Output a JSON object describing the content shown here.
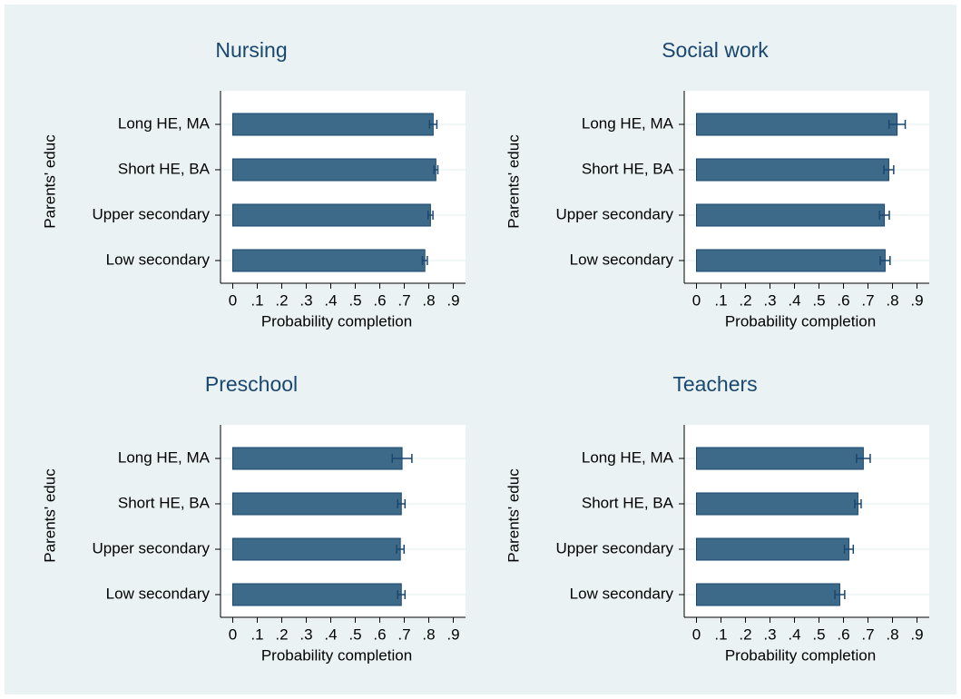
{
  "chart_data": [
    {
      "type": "hbar",
      "title": "Nursing",
      "ylabel": "Parents' educ",
      "xlabel": "Probability completion",
      "categories": [
        "Long HE, MA",
        "Short HE, BA",
        "Upper secondary",
        "Low secondary"
      ],
      "values": [
        0.818,
        0.829,
        0.807,
        0.784
      ],
      "errors": [
        0.015,
        0.008,
        0.01,
        0.01
      ],
      "color": "#3e6a8a",
      "xlim": [
        -0.05,
        0.95
      ],
      "xticks": [
        0,
        {
          "value": 0.1,
          "label": ".1"
        },
        {
          "value": 0.2,
          "label": ".2"
        },
        {
          "value": 0.3,
          "label": ".3"
        },
        {
          "value": 0.4,
          "label": ".4"
        },
        {
          "value": 0.5,
          "label": ".5"
        },
        {
          "value": 0.6,
          "label": ".6"
        },
        {
          "value": 0.7,
          "label": ".7"
        },
        {
          "value": 0.8,
          "label": ".8"
        },
        {
          "value": 0.9,
          "label": ".9"
        }
      ]
    },
    {
      "type": "hbar",
      "title": "Social work",
      "ylabel": "Parents' educ",
      "xlabel": "Probability completion",
      "categories": [
        "Long HE, MA",
        "Short HE, BA",
        "Upper secondary",
        "Low secondary"
      ],
      "values": [
        0.819,
        0.785,
        0.767,
        0.77
      ],
      "errors": [
        0.033,
        0.02,
        0.02,
        0.02
      ],
      "color": "#3e6a8a",
      "xlim": [
        -0.05,
        0.95
      ],
      "xticks": [
        0,
        {
          "value": 0.1,
          "label": ".1"
        },
        {
          "value": 0.2,
          "label": ".2"
        },
        {
          "value": 0.3,
          "label": ".3"
        },
        {
          "value": 0.4,
          "label": ".4"
        },
        {
          "value": 0.5,
          "label": ".5"
        },
        {
          "value": 0.6,
          "label": ".6"
        },
        {
          "value": 0.7,
          "label": ".7"
        },
        {
          "value": 0.8,
          "label": ".8"
        },
        {
          "value": 0.9,
          "label": ".9"
        }
      ]
    },
    {
      "type": "hbar",
      "title": "Preschool",
      "ylabel": "Parents' educ",
      "xlabel": "Probability completion",
      "categories": [
        "Long HE, MA",
        "Short HE, BA",
        "Upper secondary",
        "Low secondary"
      ],
      "values": [
        0.691,
        0.688,
        0.684,
        0.688
      ],
      "errors": [
        0.04,
        0.015,
        0.015,
        0.015
      ],
      "color": "#3e6a8a",
      "xlim": [
        -0.05,
        0.95
      ],
      "xticks": [
        0,
        {
          "value": 0.1,
          "label": ".1"
        },
        {
          "value": 0.2,
          "label": ".2"
        },
        {
          "value": 0.3,
          "label": ".3"
        },
        {
          "value": 0.4,
          "label": ".4"
        },
        {
          "value": 0.5,
          "label": ".5"
        },
        {
          "value": 0.6,
          "label": ".6"
        },
        {
          "value": 0.7,
          "label": ".7"
        },
        {
          "value": 0.8,
          "label": ".8"
        },
        {
          "value": 0.9,
          "label": ".9"
        }
      ]
    },
    {
      "type": "hbar",
      "title": "Teachers",
      "ylabel": "Parents' educ",
      "xlabel": "Probability completion",
      "categories": [
        "Long HE, MA",
        "Short HE, BA",
        "Upper secondary",
        "Low secondary"
      ],
      "values": [
        0.681,
        0.659,
        0.622,
        0.585
      ],
      "errors": [
        0.028,
        0.013,
        0.018,
        0.02
      ],
      "color": "#3e6a8a",
      "xlim": [
        -0.05,
        0.95
      ],
      "xticks": [
        0,
        {
          "value": 0.1,
          "label": ".1"
        },
        {
          "value": 0.2,
          "label": ".2"
        },
        {
          "value": 0.3,
          "label": ".3"
        },
        {
          "value": 0.4,
          "label": ".4"
        },
        {
          "value": 0.5,
          "label": ".5"
        },
        {
          "value": 0.6,
          "label": ".6"
        },
        {
          "value": 0.7,
          "label": ".7"
        },
        {
          "value": 0.8,
          "label": ".8"
        },
        {
          "value": 0.9,
          "label": ".9"
        }
      ]
    }
  ]
}
